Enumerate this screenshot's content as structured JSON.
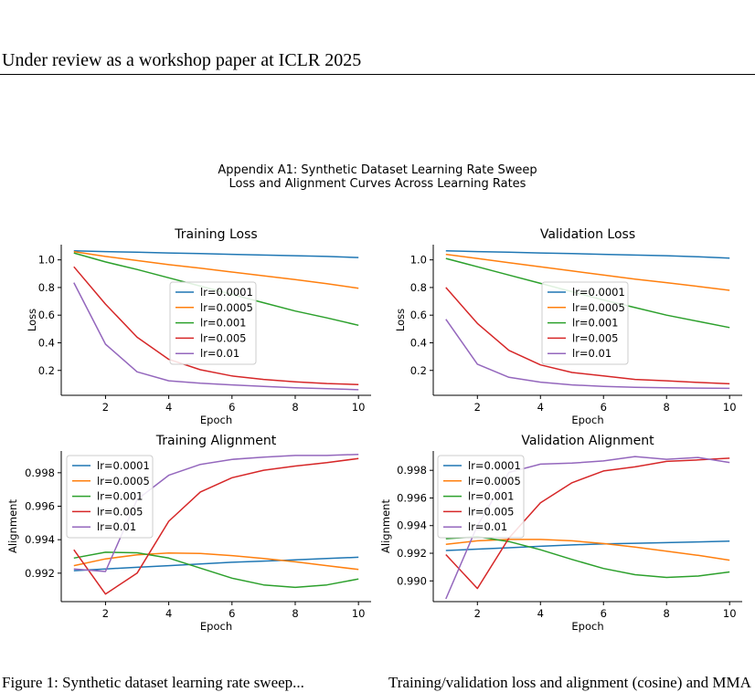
{
  "header": {
    "text": "Under review as a workshop paper at ICLR 2025"
  },
  "figure": {
    "title_line1": "Appendix A1: Synthetic Dataset Learning Rate Sweep",
    "title_line2": "Loss and Alignment Curves Across Learning Rates"
  },
  "caption": {
    "left": "Figure 1: Synthetic dataset learning rate sweep...",
    "right": "Training/validation loss and alignment (cosine) and MMA S..."
  },
  "colors": {
    "lr=0.0001": "#1f77b4",
    "lr=0.0005": "#ff7f0e",
    "lr=0.001": "#2ca02c",
    "lr=0.005": "#d62728",
    "lr=0.01": "#9467bd"
  },
  "chart_data": [
    {
      "type": "line",
      "title": "Training Loss",
      "xlabel": "Epoch",
      "ylabel": "Loss",
      "x": [
        1,
        2,
        3,
        4,
        5,
        6,
        7,
        8,
        9,
        10
      ],
      "xlim": [
        0.6,
        10.4
      ],
      "ylim": [
        0.02,
        1.11
      ],
      "xticks": [
        2,
        4,
        6,
        8,
        10
      ],
      "yticks": [
        0.2,
        0.4,
        0.6,
        0.8,
        1.0
      ],
      "ytick_labels": [
        "0.2",
        "0.4",
        "0.6",
        "0.8",
        "1.0"
      ],
      "legend_placement": "center",
      "series": [
        {
          "name": "lr=0.0001",
          "values": [
            1.065,
            1.06,
            1.055,
            1.05,
            1.045,
            1.04,
            1.035,
            1.03,
            1.025,
            1.017
          ]
        },
        {
          "name": "lr=0.0005",
          "values": [
            1.06,
            1.025,
            0.995,
            0.965,
            0.94,
            0.912,
            0.885,
            0.857,
            0.828,
            0.795
          ]
        },
        {
          "name": "lr=0.001",
          "values": [
            1.05,
            0.985,
            0.93,
            0.87,
            0.81,
            0.75,
            0.69,
            0.63,
            0.58,
            0.527
          ]
        },
        {
          "name": "lr=0.005",
          "values": [
            0.95,
            0.68,
            0.44,
            0.28,
            0.205,
            0.16,
            0.135,
            0.118,
            0.105,
            0.098
          ]
        },
        {
          "name": "lr=0.01",
          "values": [
            0.835,
            0.39,
            0.19,
            0.125,
            0.107,
            0.095,
            0.085,
            0.075,
            0.068,
            0.06
          ]
        }
      ]
    },
    {
      "type": "line",
      "title": "Validation Loss",
      "xlabel": "Epoch",
      "ylabel": "Loss",
      "x": [
        1,
        2,
        3,
        4,
        5,
        6,
        7,
        8,
        9,
        10
      ],
      "xlim": [
        0.6,
        10.4
      ],
      "ylim": [
        0.02,
        1.11
      ],
      "xticks": [
        2,
        4,
        6,
        8,
        10
      ],
      "yticks": [
        0.2,
        0.4,
        0.6,
        0.8,
        1.0
      ],
      "ytick_labels": [
        "0.2",
        "0.4",
        "0.6",
        "0.8",
        "1.0"
      ],
      "legend_placement": "center",
      "series": [
        {
          "name": "lr=0.0001",
          "values": [
            1.065,
            1.06,
            1.055,
            1.05,
            1.045,
            1.04,
            1.035,
            1.03,
            1.022,
            1.013
          ]
        },
        {
          "name": "lr=0.0005",
          "values": [
            1.04,
            1.01,
            0.98,
            0.95,
            0.92,
            0.89,
            0.86,
            0.835,
            0.808,
            0.78
          ]
        },
        {
          "name": "lr=0.001",
          "values": [
            1.01,
            0.95,
            0.89,
            0.83,
            0.77,
            0.71,
            0.655,
            0.6,
            0.555,
            0.51
          ]
        },
        {
          "name": "lr=0.005",
          "values": [
            0.8,
            0.54,
            0.345,
            0.24,
            0.185,
            0.16,
            0.135,
            0.125,
            0.113,
            0.103
          ]
        },
        {
          "name": "lr=0.01",
          "values": [
            0.57,
            0.245,
            0.15,
            0.115,
            0.095,
            0.085,
            0.078,
            0.075,
            0.072,
            0.07
          ]
        }
      ]
    },
    {
      "type": "line",
      "title": "Training Alignment",
      "xlabel": "Epoch",
      "ylabel": "Alignment",
      "x": [
        1,
        2,
        3,
        4,
        5,
        6,
        7,
        8,
        9,
        10
      ],
      "xlim": [
        0.6,
        10.4
      ],
      "ylim": [
        0.9903,
        0.9993
      ],
      "xticks": [
        2,
        4,
        6,
        8,
        10
      ],
      "yticks": [
        0.992,
        0.994,
        0.996,
        0.998
      ],
      "ytick_labels": [
        "0.992",
        "0.994",
        "0.996",
        "0.998"
      ],
      "legend_placement": "upper left",
      "series": [
        {
          "name": "lr=0.0001",
          "values": [
            0.99215,
            0.99225,
            0.99235,
            0.99245,
            0.99255,
            0.99265,
            0.99272,
            0.9928,
            0.99288,
            0.99295
          ]
        },
        {
          "name": "lr=0.0005",
          "values": [
            0.99245,
            0.99285,
            0.9931,
            0.9932,
            0.99318,
            0.99305,
            0.99288,
            0.99268,
            0.99245,
            0.99222
          ]
        },
        {
          "name": "lr=0.001",
          "values": [
            0.9929,
            0.99325,
            0.99322,
            0.9929,
            0.9923,
            0.9917,
            0.9913,
            0.99115,
            0.9913,
            0.99165
          ]
        },
        {
          "name": "lr=0.005",
          "values": [
            0.9934,
            0.99075,
            0.992,
            0.9951,
            0.99685,
            0.9977,
            0.99815,
            0.9984,
            0.9986,
            0.99885
          ]
        },
        {
          "name": "lr=0.01",
          "values": [
            0.99225,
            0.9921,
            0.9964,
            0.99785,
            0.9985,
            0.9988,
            0.99893,
            0.99903,
            0.99903,
            0.9991
          ]
        }
      ]
    },
    {
      "type": "line",
      "title": "Validation Alignment",
      "xlabel": "Epoch",
      "ylabel": "Alignment",
      "x": [
        1,
        2,
        3,
        4,
        5,
        6,
        7,
        8,
        9,
        10
      ],
      "xlim": [
        0.6,
        10.4
      ],
      "ylim": [
        0.9885,
        0.9994
      ],
      "xticks": [
        2,
        4,
        6,
        8,
        10
      ],
      "yticks": [
        0.99,
        0.992,
        0.994,
        0.996,
        0.998
      ],
      "ytick_labels": [
        "0.990",
        "0.992",
        "0.994",
        "0.996",
        "0.998"
      ],
      "legend_placement": "upper left",
      "series": [
        {
          "name": "lr=0.0001",
          "values": [
            0.9922,
            0.9923,
            0.9924,
            0.9925,
            0.9926,
            0.99268,
            0.99272,
            0.99277,
            0.99282,
            0.99287
          ]
        },
        {
          "name": "lr=0.0005",
          "values": [
            0.99265,
            0.9929,
            0.993,
            0.993,
            0.9929,
            0.9927,
            0.99245,
            0.99215,
            0.99185,
            0.9915
          ]
        },
        {
          "name": "lr=0.001",
          "values": [
            0.99305,
            0.9932,
            0.99285,
            0.99225,
            0.99155,
            0.9909,
            0.99045,
            0.99025,
            0.99035,
            0.99065
          ]
        },
        {
          "name": "lr=0.005",
          "values": [
            0.9919,
            0.98945,
            0.9931,
            0.99565,
            0.9971,
            0.99795,
            0.99825,
            0.99865,
            0.99875,
            0.99888
          ]
        },
        {
          "name": "lr=0.01",
          "values": [
            0.9887,
            0.994,
            0.99785,
            0.99845,
            0.99852,
            0.99868,
            0.999,
            0.9988,
            0.99893,
            0.99857
          ]
        }
      ]
    }
  ]
}
